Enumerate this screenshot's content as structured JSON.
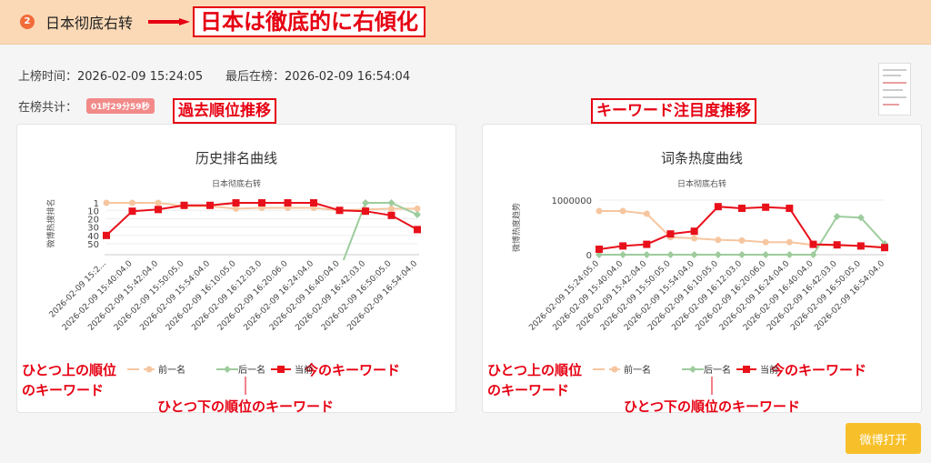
{
  "header": {
    "rank": "2",
    "topic": "日本彻底右转",
    "annotation": "日本は徹底的に右傾化"
  },
  "meta": {
    "on_label": "上榜时间：",
    "on_value": "2026-02-09 15:24:05",
    "last_label": "最后在榜：",
    "last_value": "2026-02-09 16:54:04",
    "total_label": "在榜共计：",
    "total_value": "01时29分59秒"
  },
  "annotations": {
    "rank_chart": "過去順位推移",
    "heat_chart": "キーワード注目度推移",
    "prev_kw_1": "ひとつ上の順位",
    "prev_kw_2": "のキーワード",
    "next_kw": "ひとつ下の順位のキーワード",
    "current_kw": "今のキーワード"
  },
  "colors": {
    "prev": "#f6c6a0",
    "next": "#9dcc9d",
    "current": "#e8101a",
    "annotation": "#e60012",
    "button": "#f7c02b"
  },
  "legend": {
    "prev": "前一名",
    "next": "后一名",
    "current": "当前"
  },
  "open_button": "微博打开",
  "chart_data": [
    {
      "type": "line",
      "title": "历史排名曲线",
      "subtitle": "日本彻底右转",
      "ylabel": "微博热搜排名",
      "y_inverted": true,
      "ylim": [
        1,
        50
      ],
      "y_ticks": [
        "1",
        "10",
        "20",
        "30",
        "40",
        "50"
      ],
      "x_labels": [
        "2026-02-09 15:2...",
        "2026-02-09 15:40:04.0",
        "2026-02-09 15:42:04.0",
        "2026-02-09 15:50:05.0",
        "2026-02-09 15:54:04.0",
        "2026-02-09 16:10:05.0",
        "2026-02-09 16:12:03.0",
        "2026-02-09 16:20:06.0",
        "2026-02-09 16:24:04.0",
        "2026-02-09 16:40:04.0",
        "2026-02-09 16:42:03.0",
        "2026-02-09 16:50:05.0",
        "2026-02-09 16:54:04.0"
      ],
      "series": [
        {
          "name": "前一名",
          "key": "prev",
          "values": [
            1,
            1,
            1,
            5,
            5,
            8,
            7,
            7,
            7,
            10,
            9,
            8,
            8
          ]
        },
        {
          "name": "后一名",
          "key": "next",
          "values": [
            null,
            null,
            null,
            null,
            null,
            null,
            null,
            null,
            null,
            null,
            1,
            1,
            15
          ]
        },
        {
          "name": "当前",
          "key": "current",
          "values": [
            40,
            11,
            9,
            4,
            4,
            1,
            1,
            1,
            1,
            10,
            11,
            16,
            33
          ]
        }
      ]
    },
    {
      "type": "line",
      "title": "词条热度曲线",
      "subtitle": "日本彻底右转",
      "ylabel": "微博热度趋势",
      "ylim": [
        0,
        1000000
      ],
      "y_ticks": [
        "0",
        "1000000"
      ],
      "x_labels": [
        "2026-02-09 15:24:05.0",
        "2026-02-09 15:40:04.0",
        "2026-02-09 15:42:04.0",
        "2026-02-09 15:50:05.0",
        "2026-02-09 15:54:04.0",
        "2026-02-09 16:10:05.0",
        "2026-02-09 16:12:03.0",
        "2026-02-09 16:20:06.0",
        "2026-02-09 16:24:04.0",
        "2026-02-09 16:40:04.0",
        "2026-02-09 16:42:03.0",
        "2026-02-09 16:50:05.0",
        "2026-02-09 16:54:04.0"
      ],
      "series": [
        {
          "name": "前一名",
          "key": "prev",
          "values": [
            800000,
            800000,
            750000,
            320000,
            300000,
            270000,
            260000,
            230000,
            230000,
            180000,
            170000,
            160000,
            140000
          ]
        },
        {
          "name": "后一名",
          "key": "next",
          "values": [
            0,
            0,
            0,
            0,
            0,
            0,
            0,
            0,
            0,
            0,
            700000,
            680000,
            200000
          ]
        },
        {
          "name": "当前",
          "key": "current",
          "values": [
            100000,
            160000,
            190000,
            380000,
            430000,
            880000,
            850000,
            870000,
            850000,
            190000,
            180000,
            160000,
            130000
          ]
        }
      ]
    }
  ]
}
